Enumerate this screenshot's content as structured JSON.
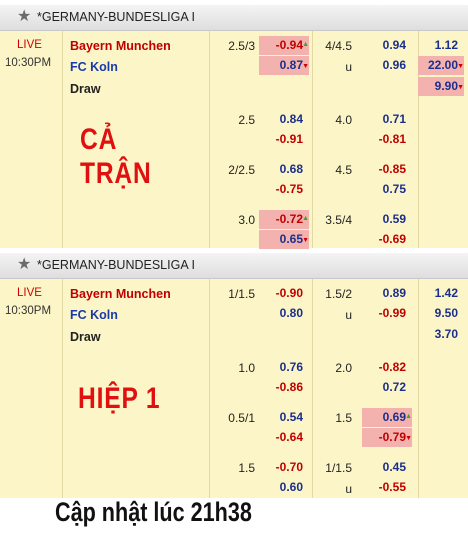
{
  "matches": [
    {
      "league": "*GERMANY-BUNDESLIGA I",
      "status": "LIVE",
      "time": "10:30PM",
      "home": "Bayern Munchen",
      "away": "FC Koln",
      "draw": "Draw",
      "overlay": "CẢ TRẬN",
      "rows": [
        {
          "hdp": "2.5/3",
          "hdp_home": "-0.94",
          "hdp_away": "0.87",
          "ou": "4/4.5",
          "ou_u": "u",
          "ou_over": "0.94",
          "ou_under": "0.96",
          "x1": "1.12",
          "x2": "22.00",
          "xd": "9.90"
        },
        {
          "hdp": "2.5",
          "hdp_home": "0.84",
          "hdp_away": "-0.91",
          "ou": "4.0",
          "ou_over": "0.71",
          "ou_under": "-0.81"
        },
        {
          "hdp": "2/2.5",
          "hdp_home": "0.68",
          "hdp_away": "-0.75",
          "ou": "4.5",
          "ou_over": "-0.85",
          "ou_under": "0.75"
        },
        {
          "hdp": "3.0",
          "hdp_home": "-0.72",
          "hdp_away": "0.65",
          "ou": "3.5/4",
          "ou_over": "0.59",
          "ou_under": "-0.69"
        }
      ]
    },
    {
      "league": "*GERMANY-BUNDESLIGA I",
      "status": "LIVE",
      "time": "10:30PM",
      "home": "Bayern Munchen",
      "away": "FC Koln",
      "draw": "Draw",
      "overlay": "HIỆP 1",
      "rows": [
        {
          "hdp": "1/1.5",
          "hdp_home": "-0.90",
          "hdp_away": "0.80",
          "ou": "1.5/2",
          "ou_u": "u",
          "ou_over": "0.89",
          "ou_under": "-0.99",
          "x1": "1.42",
          "x2": "9.50",
          "xd": "3.70"
        },
        {
          "hdp": "1.0",
          "hdp_home": "0.76",
          "hdp_away": "-0.86",
          "ou": "2.0",
          "ou_over": "-0.82",
          "ou_under": "0.72"
        },
        {
          "hdp": "0.5/1",
          "hdp_home": "0.54",
          "hdp_away": "-0.64",
          "ou": "1.5",
          "ou_over": "0.69",
          "ou_under": "-0.79"
        },
        {
          "hdp": "1.5",
          "hdp_home": "-0.70",
          "hdp_away": "0.60",
          "ou": "1/1.5",
          "ou_u": "u",
          "ou_over": "0.45",
          "ou_under": "-0.55"
        }
      ]
    }
  ],
  "footer": "Cập nhật lúc 21h38",
  "colors": {
    "highlight": "#f4b2ae",
    "panel": "#fcf5c7",
    "positive": "#1a2f8c",
    "negative": "#c00000",
    "overlay_text": "#e01010"
  },
  "icons": {
    "favorite": "star-icon",
    "odds_up": "triangle-up-icon",
    "odds_down": "triangle-down-icon"
  }
}
